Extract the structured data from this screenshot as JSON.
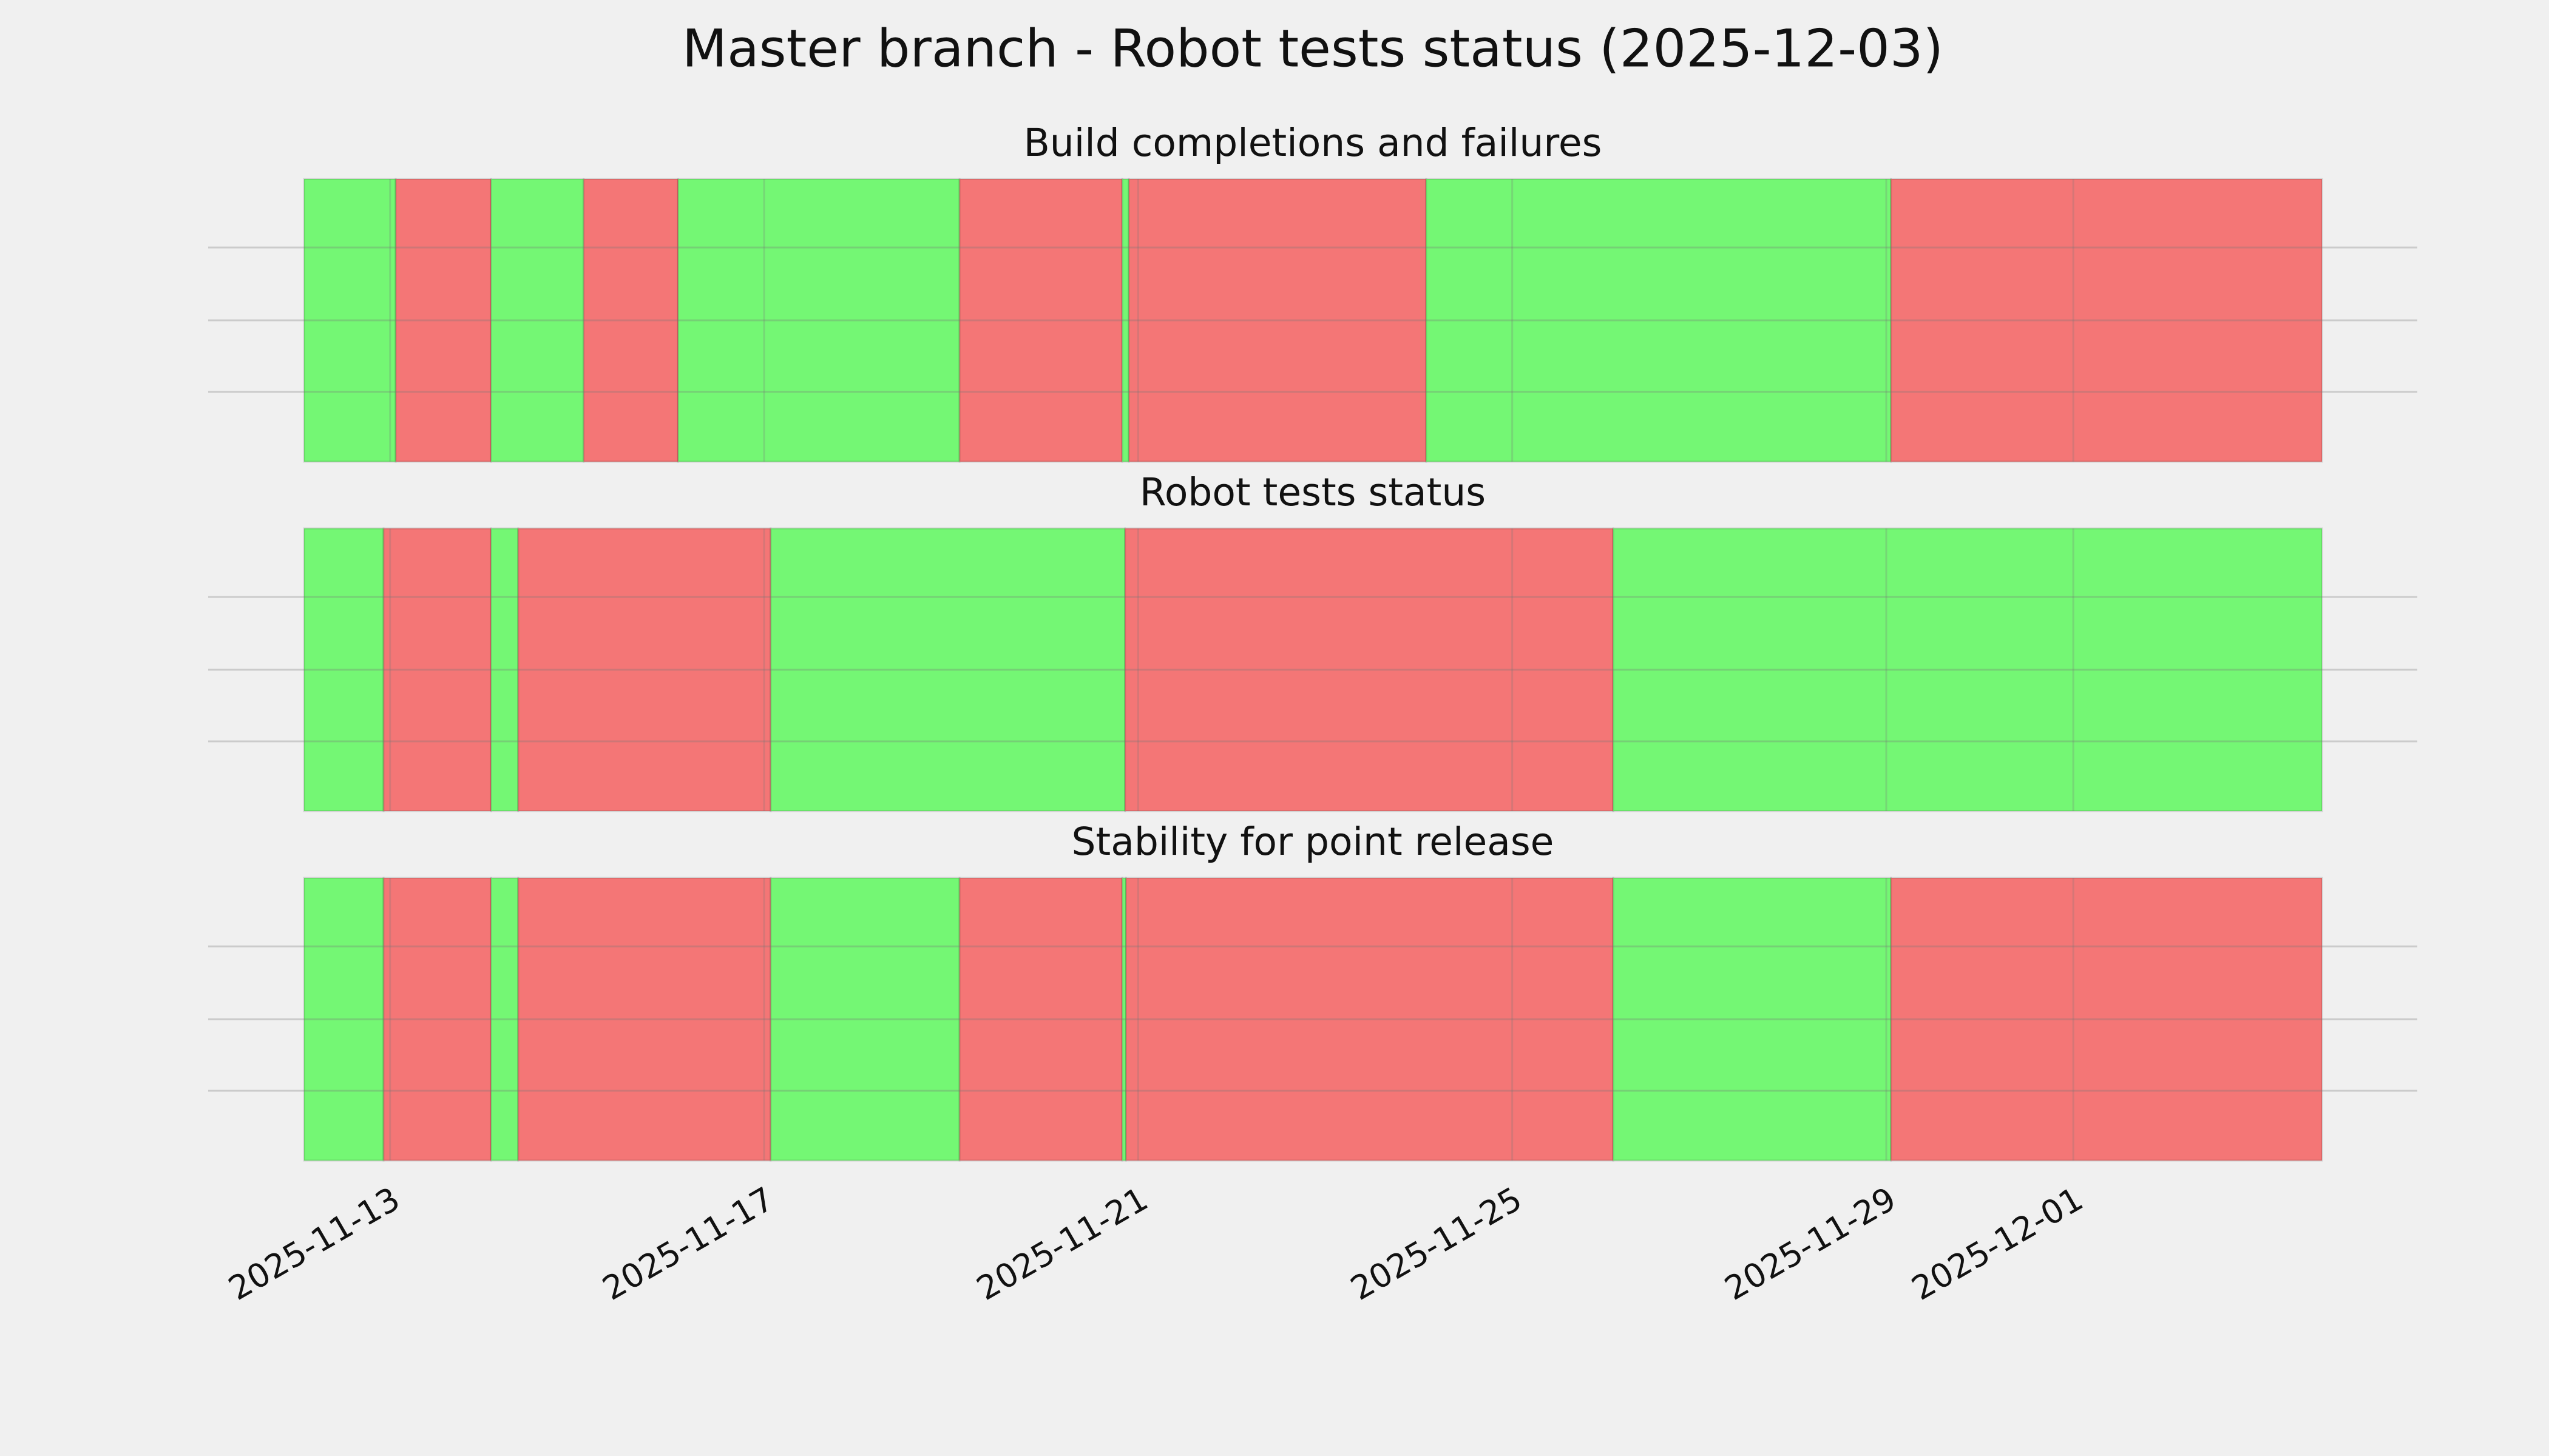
{
  "chart_data": {
    "type": "timeline",
    "title": "Master branch - Robot tests status (2025-12-03)",
    "xlim": [
      -0.92,
      20.66
    ],
    "xticks": [
      {
        "value": 0,
        "label": "2025-11-13"
      },
      {
        "value": 4,
        "label": "2025-11-17"
      },
      {
        "value": 8,
        "label": "2025-11-21"
      },
      {
        "value": 12,
        "label": "2025-11-25"
      },
      {
        "value": 16,
        "label": "2025-11-29"
      },
      {
        "value": 18,
        "label": "2025-12-01"
      }
    ],
    "grid": true,
    "panels": [
      {
        "title": "Build completions and failures",
        "start": [
          -0.92,
          0.06,
          1.08,
          2.07,
          3.08,
          6.09,
          7.83,
          7.9,
          11.08,
          16.05
        ],
        "end": [
          0.06,
          1.08,
          2.07,
          3.08,
          6.09,
          7.83,
          7.9,
          11.08,
          16.05,
          20.66
        ],
        "color": [
          "#74f774",
          "#f47676",
          "#74f774",
          "#f47676",
          "#74f774",
          "#f47676",
          "#74f774",
          "#f47676",
          "#74f774",
          "#f47676"
        ]
      },
      {
        "title": "Robot tests status",
        "start": [
          -0.92,
          -0.07,
          1.08,
          1.37,
          4.07,
          7.86,
          13.08
        ],
        "end": [
          -0.07,
          1.08,
          1.37,
          4.07,
          7.86,
          13.08,
          20.66
        ],
        "color": [
          "#74f774",
          "#f47676",
          "#74f774",
          "#f47676",
          "#74f774",
          "#f47676",
          "#74f774"
        ]
      },
      {
        "title": "Stability for point release",
        "start": [
          -0.92,
          -0.07,
          1.08,
          1.37,
          4.07,
          6.09,
          7.83,
          7.87,
          13.08,
          16.05
        ],
        "end": [
          -0.07,
          1.08,
          1.37,
          4.07,
          6.09,
          7.83,
          7.87,
          13.08,
          16.05,
          20.66
        ],
        "color": [
          "#74f774",
          "#f47676",
          "#74f774",
          "#f47676",
          "#74f774",
          "#f47676",
          "#74f774",
          "#f47676",
          "#74f774",
          "#f47676"
        ]
      }
    ]
  }
}
